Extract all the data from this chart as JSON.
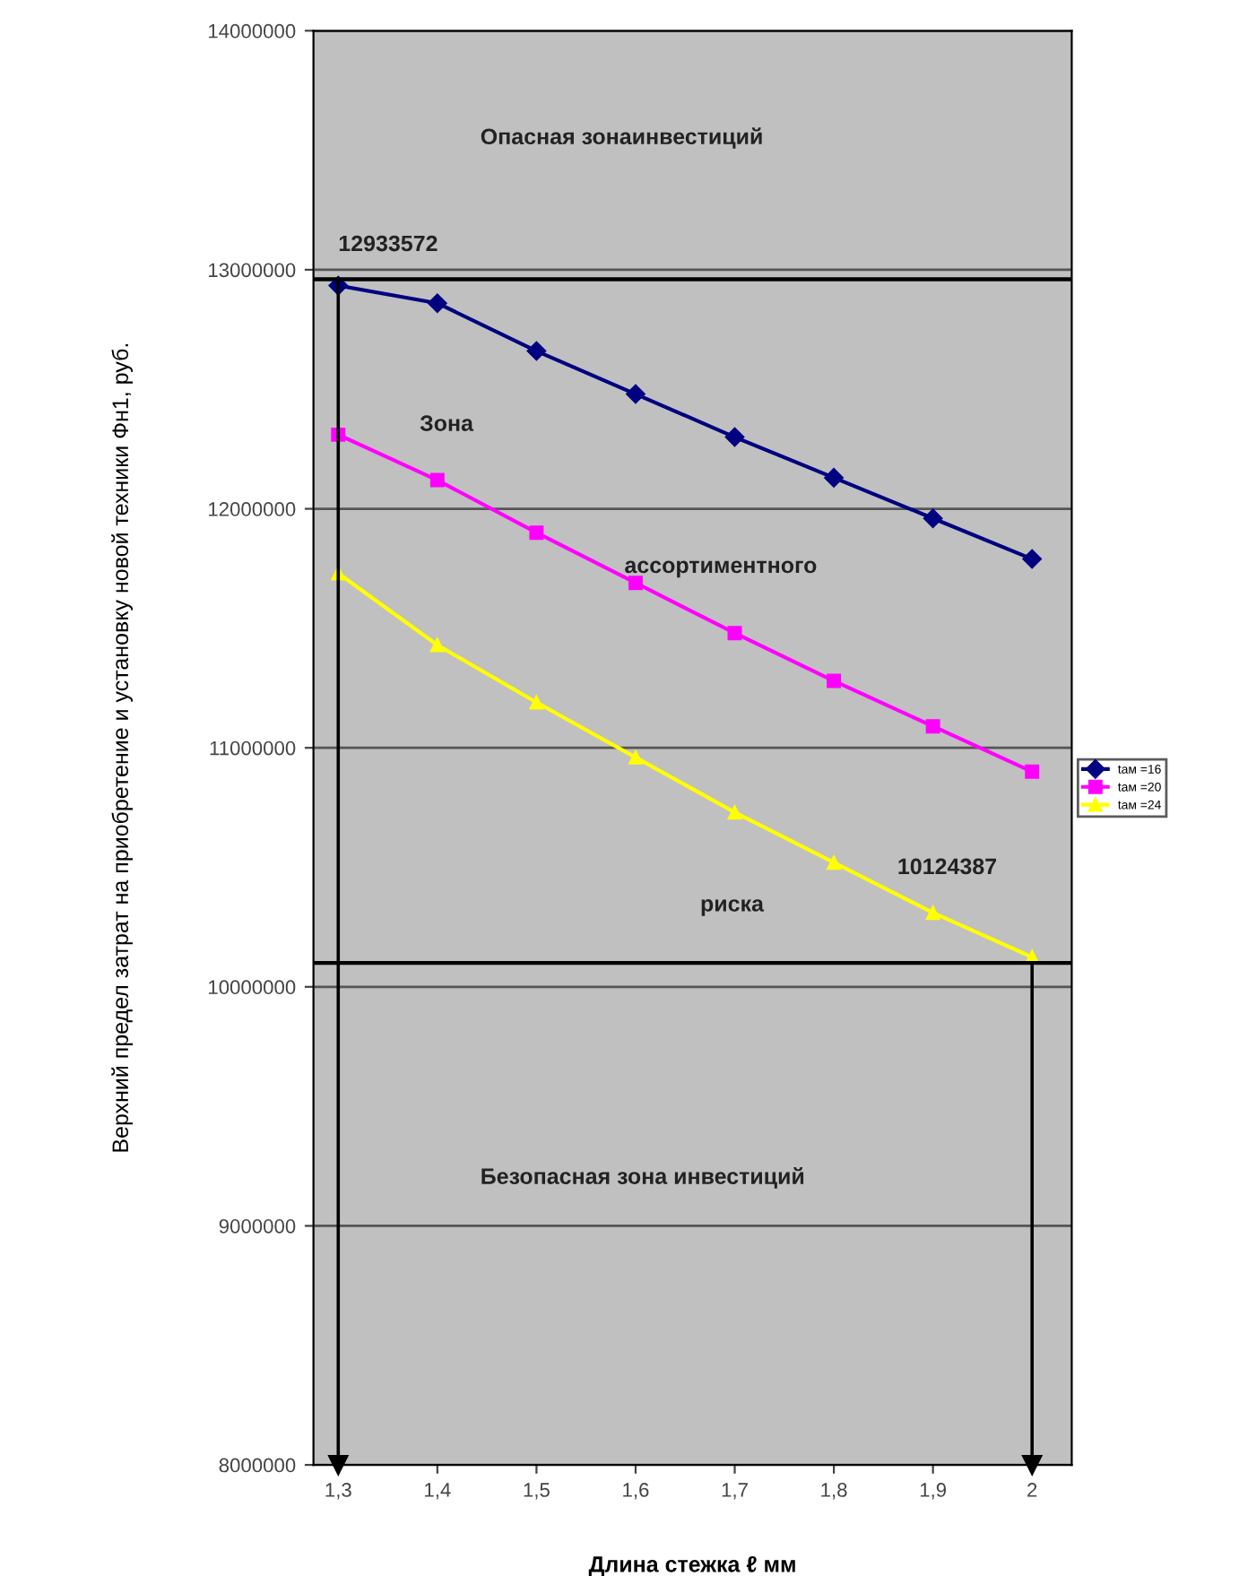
{
  "chart_data": {
    "type": "line",
    "xlabel": "Длина стежка ℓ мм",
    "ylabel": "Верхний предел затрат на приобретение и установку новой техники Фн1, руб.",
    "x": [
      1.3,
      1.4,
      1.5,
      1.6,
      1.7,
      1.8,
      1.9,
      2.0
    ],
    "series": [
      {
        "name": "tам =16",
        "color": "#000080",
        "marker": "diamond",
        "values": [
          12933572,
          12860000,
          12660000,
          12480000,
          12300000,
          12130000,
          11960000,
          11790000
        ]
      },
      {
        "name": "tам =20",
        "color": "#ff00ff",
        "marker": "square",
        "values": [
          12310000,
          12120000,
          11900000,
          11690000,
          11480000,
          11280000,
          11090000,
          10900000
        ]
      },
      {
        "name": "tам =24",
        "color": "#ffff00",
        "marker": "triangle",
        "values": [
          11730000,
          11430000,
          11190000,
          10960000,
          10730000,
          10520000,
          10310000,
          10124387
        ]
      }
    ],
    "xlim": [
      1.275,
      2.04
    ],
    "xticks": [
      {
        "value": 1.3,
        "label": "1,3"
      },
      {
        "value": 1.4,
        "label": "1,4"
      },
      {
        "value": 1.5,
        "label": "1,5"
      },
      {
        "value": 1.6,
        "label": "1,6"
      },
      {
        "value": 1.7,
        "label": "1,7"
      },
      {
        "value": 1.8,
        "label": "1,8"
      },
      {
        "value": 1.9,
        "label": "1,9"
      },
      {
        "value": 2.0,
        "label": "2"
      }
    ],
    "ylim": [
      8000000,
      14000000
    ],
    "yticks": [
      8000000,
      9000000,
      10000000,
      11000000,
      12000000,
      13000000,
      14000000
    ],
    "grid": "y",
    "legend": "right",
    "ref_lines": [
      {
        "axis": "y",
        "value": 12960000,
        "color": "#000000"
      },
      {
        "axis": "y",
        "value": 10100000,
        "color": "#000000"
      },
      {
        "axis": "x",
        "value": 1.3,
        "color": "#000000"
      },
      {
        "axis": "x",
        "value": 2.0,
        "color": "#000000"
      }
    ],
    "annotations": [
      {
        "text": "12933572",
        "x": 1.3,
        "y": 12933572
      },
      "10124387",
      "Опасная зонаинвестиций",
      "Зона",
      "ассортиментного",
      "риска",
      "Безопасная зона инвестиций"
    ]
  }
}
